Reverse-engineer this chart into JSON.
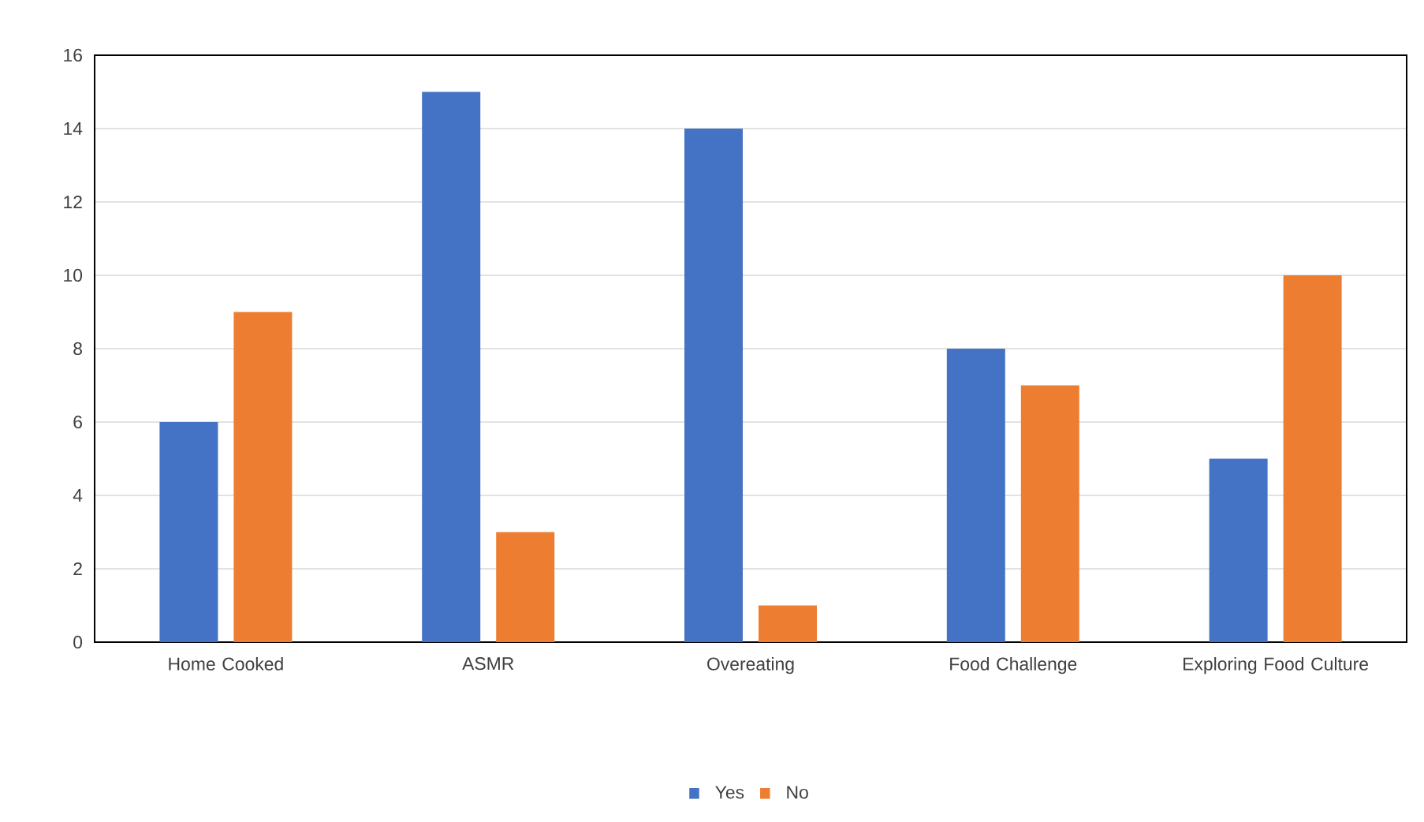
{
  "chart_data": {
    "type": "bar",
    "categories": [
      "Home Cooked",
      "ASMR",
      "Overeating",
      "Food Challenge",
      "Exploring Food Culture"
    ],
    "series": [
      {
        "name": "Yes",
        "color": "#4472c4",
        "values": [
          6,
          15,
          14,
          8,
          5
        ]
      },
      {
        "name": "No",
        "color": "#ed7d31",
        "values": [
          9,
          3,
          1,
          7,
          10
        ]
      }
    ],
    "ylim": [
      0,
      16
    ],
    "yticks": [
      0,
      2,
      4,
      6,
      8,
      10,
      12,
      14,
      16
    ],
    "grid": "y",
    "legend": "bottom"
  }
}
